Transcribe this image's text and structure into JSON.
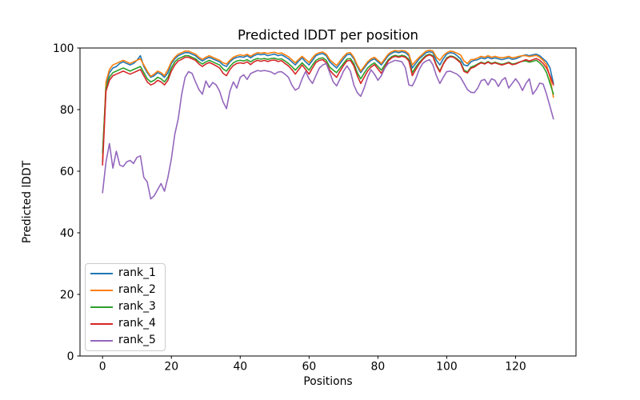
{
  "chart_data": {
    "type": "line",
    "title": "Predicted lDDT per position",
    "xlabel": "Positions",
    "ylabel": "Predicted lDDT",
    "xlim": [
      -6.55,
      137.55
    ],
    "ylim": [
      0,
      100
    ],
    "x_ticks": [
      0,
      20,
      40,
      60,
      80,
      100,
      120
    ],
    "y_ticks": [
      0,
      20,
      40,
      60,
      80,
      100
    ],
    "grid": false,
    "legend_position": "lower left",
    "x_start": 0,
    "x_step": 1,
    "axis_color": "#000000",
    "legend_border_color": "#cccccc",
    "series": [
      {
        "name": "rank_1",
        "color": "#1f77b4",
        "values": [
          63,
          88,
          92,
          93.5,
          94,
          95,
          95.5,
          95,
          94.5,
          95,
          96,
          97.5,
          94,
          92,
          90.5,
          91,
          92,
          91.5,
          90.5,
          92,
          95,
          96.5,
          97.5,
          98,
          98.5,
          98.5,
          98,
          97.5,
          96.5,
          95.8,
          96.5,
          97,
          96.5,
          96,
          95.5,
          94.5,
          94,
          95.5,
          96.5,
          97,
          97.2,
          97,
          97.5,
          96.8,
          97.5,
          98,
          97.8,
          98,
          97.5,
          97.8,
          98,
          97.5,
          97.8,
          97.2,
          96.5,
          95.5,
          94.5,
          95.8,
          96.8,
          95.5,
          94.5,
          96,
          97.5,
          98,
          98.2,
          97.5,
          95.5,
          94.5,
          93.5,
          95,
          96.5,
          97.8,
          98,
          96.5,
          94,
          92,
          93.5,
          95,
          96,
          96.5,
          95.5,
          94.5,
          96,
          97.5,
          98.3,
          98.8,
          98.5,
          98.8,
          98.5,
          97.5,
          93.5,
          95,
          96.5,
          97.5,
          98.5,
          98.8,
          98.5,
          96,
          94.5,
          96.5,
          98,
          98.5,
          98.3,
          97.5,
          96.5,
          94.5,
          94.2,
          95.5,
          96,
          96.2,
          96.8,
          96.5,
          97,
          96.5,
          96.8,
          96.5,
          96.2,
          96.5,
          96.8,
          96.3,
          96.5,
          97,
          97.5,
          97.8,
          97.5,
          97.8,
          98,
          97.5,
          96.5,
          95.5,
          93.5,
          88.5
        ]
      },
      {
        "name": "rank_2",
        "color": "#ff7f0e",
        "values": [
          64,
          89,
          93,
          94.5,
          95,
          95.5,
          96,
          95.5,
          95,
          95.5,
          96,
          96.5,
          94.5,
          92.5,
          90.8,
          91.5,
          92.5,
          92,
          91,
          93,
          95.5,
          97,
          98,
          98.5,
          99,
          99,
          98.5,
          98,
          97,
          96.3,
          97,
          97.5,
          97,
          96.5,
          96,
          95.2,
          94.8,
          96,
          97,
          97.5,
          97.8,
          97.5,
          98,
          97.3,
          98,
          98.5,
          98.3,
          98.5,
          98.2,
          98.5,
          98.6,
          98.2,
          98.4,
          97.8,
          97.2,
          96.2,
          95.2,
          96.3,
          97.3,
          96.3,
          95.3,
          96.8,
          98,
          98.5,
          98.7,
          98,
          96.2,
          95.2,
          94.3,
          95.8,
          97.2,
          98.3,
          98.5,
          97,
          94.5,
          92.5,
          94,
          95.5,
          96.5,
          97,
          96,
          95,
          96.5,
          98,
          98.8,
          99.2,
          99,
          99.2,
          99,
          98,
          94.5,
          95.8,
          97,
          98,
          99,
          99.3,
          99,
          97,
          96,
          97.5,
          98.5,
          99,
          98.8,
          98.3,
          97.8,
          95.8,
          95,
          96.2,
          96.3,
          96.8,
          97.3,
          97,
          97.5,
          97,
          97.3,
          97,
          96.8,
          97,
          97.3,
          96.8,
          97,
          97.3,
          97.5,
          97.5,
          97.2,
          97.4,
          97.6,
          97,
          96,
          94.5,
          90.5,
          84
        ]
      },
      {
        "name": "rank_3",
        "color": "#2ca02c",
        "values": [
          66,
          87,
          90.5,
          92,
          92.5,
          93,
          93.5,
          93,
          92.5,
          93,
          93.5,
          94,
          92,
          90,
          89,
          89.5,
          90.5,
          90,
          89,
          90.5,
          93.5,
          95.5,
          96.5,
          97,
          97.5,
          97.5,
          97,
          96.5,
          95.5,
          94.8,
          95.5,
          96,
          95.5,
          95,
          94.5,
          93.2,
          92.5,
          94,
          95.2,
          95.8,
          96,
          95.8,
          96.2,
          95.5,
          96.2,
          96.6,
          96.4,
          96.6,
          96.3,
          96.6,
          96.7,
          96.3,
          96.5,
          95.8,
          95,
          94,
          92.8,
          94,
          95.2,
          94,
          92.8,
          94.5,
          96,
          96.6,
          96.8,
          96,
          93.8,
          92.8,
          92,
          93.5,
          95,
          96.4,
          96.6,
          95,
          92,
          90,
          91.8,
          93.5,
          94.5,
          95.2,
          94,
          92.8,
          94.5,
          96.2,
          97.2,
          97.6,
          97.3,
          97.6,
          97.3,
          96.2,
          92,
          93.8,
          95.3,
          96.5,
          97.6,
          98,
          97.5,
          94.5,
          92.5,
          95,
          96.8,
          97.4,
          97.2,
          96.5,
          95.5,
          92.8,
          92.2,
          93.8,
          94.2,
          94.8,
          95.4,
          95,
          95.6,
          95,
          95.4,
          95,
          94.7,
          95,
          95.4,
          94.8,
          95,
          95.4,
          95.7,
          95.8,
          95.4,
          95.7,
          96,
          95.2,
          94,
          92,
          88.5,
          85
        ]
      },
      {
        "name": "rank_4",
        "color": "#d62728",
        "values": [
          62,
          86,
          89.5,
          91,
          91.5,
          92,
          92.5,
          92,
          91.5,
          92,
          92.5,
          93,
          91,
          89,
          88,
          88.5,
          89.5,
          89,
          88,
          89.5,
          92.5,
          94.5,
          95.8,
          96.3,
          97,
          97,
          96.5,
          96,
          94.8,
          94,
          94.8,
          95.3,
          94.8,
          94.2,
          93.5,
          91.8,
          91,
          93,
          94.3,
          95,
          95.2,
          95,
          95.5,
          94.6,
          95.5,
          96,
          95.7,
          96,
          95.6,
          96,
          96.1,
          95.6,
          95.9,
          95,
          94.2,
          93,
          91.5,
          93,
          94.5,
          93,
          91.5,
          93.5,
          95.3,
          96,
          96.2,
          95.2,
          92.8,
          91.5,
          90.5,
          92.5,
          94.3,
          95.8,
          96,
          94.2,
          91,
          88.5,
          90.5,
          92.5,
          93.8,
          94.6,
          93.2,
          91.8,
          93.8,
          95.8,
          96.8,
          97.3,
          97,
          97.3,
          97,
          95.8,
          91,
          93,
          94.8,
          96.2,
          97.3,
          97.8,
          97.2,
          94.2,
          92.2,
          94.8,
          96.5,
          97.2,
          97,
          96.2,
          95.2,
          92.4,
          91.9,
          93.4,
          93.8,
          94.6,
          95.2,
          94.8,
          95.4,
          94.8,
          95.2,
          94.8,
          94.5,
          94.8,
          95.2,
          94.6,
          94.8,
          95.3,
          95.8,
          96.2,
          95.8,
          96.2,
          96.6,
          96,
          95,
          93.5,
          91,
          88
        ]
      },
      {
        "name": "rank_5",
        "color": "#9467bd",
        "values": [
          53,
          63,
          69,
          61,
          66.5,
          62,
          61.5,
          63,
          63.5,
          62.5,
          64.5,
          65,
          58,
          56.5,
          51,
          52,
          54,
          56,
          53.5,
          58,
          64,
          72,
          77,
          85,
          90.5,
          92.3,
          91.8,
          89,
          86.5,
          85,
          89.3,
          87.2,
          88.8,
          88,
          86,
          82.5,
          80.3,
          86,
          89,
          87,
          90.5,
          91.3,
          89.8,
          91.7,
          92.2,
          92.7,
          92.5,
          92.7,
          92.5,
          92.2,
          91.5,
          92.2,
          92.3,
          91.5,
          90.5,
          88,
          86.3,
          87,
          90,
          92.4,
          90,
          88.5,
          91,
          93.5,
          94.5,
          95,
          92,
          89,
          87.7,
          90,
          92.5,
          94.2,
          92.5,
          88,
          85.5,
          84.3,
          87,
          90.5,
          92.9,
          91.5,
          89.5,
          91,
          93.5,
          95,
          95.5,
          96,
          95.8,
          95.5,
          93.5,
          88,
          87.7,
          90,
          93,
          95,
          95.8,
          96.2,
          94.5,
          91,
          88.5,
          90.5,
          92.3,
          92.5,
          92,
          91.5,
          90.5,
          88.5,
          86.5,
          85.6,
          85.5,
          87,
          89.4,
          89.8,
          88,
          90,
          89.5,
          87.5,
          89.5,
          90.4,
          87,
          88.5,
          90,
          88.5,
          86.2,
          88.5,
          90,
          85,
          86.5,
          88.6,
          88.3,
          85,
          81,
          77
        ]
      }
    ]
  }
}
